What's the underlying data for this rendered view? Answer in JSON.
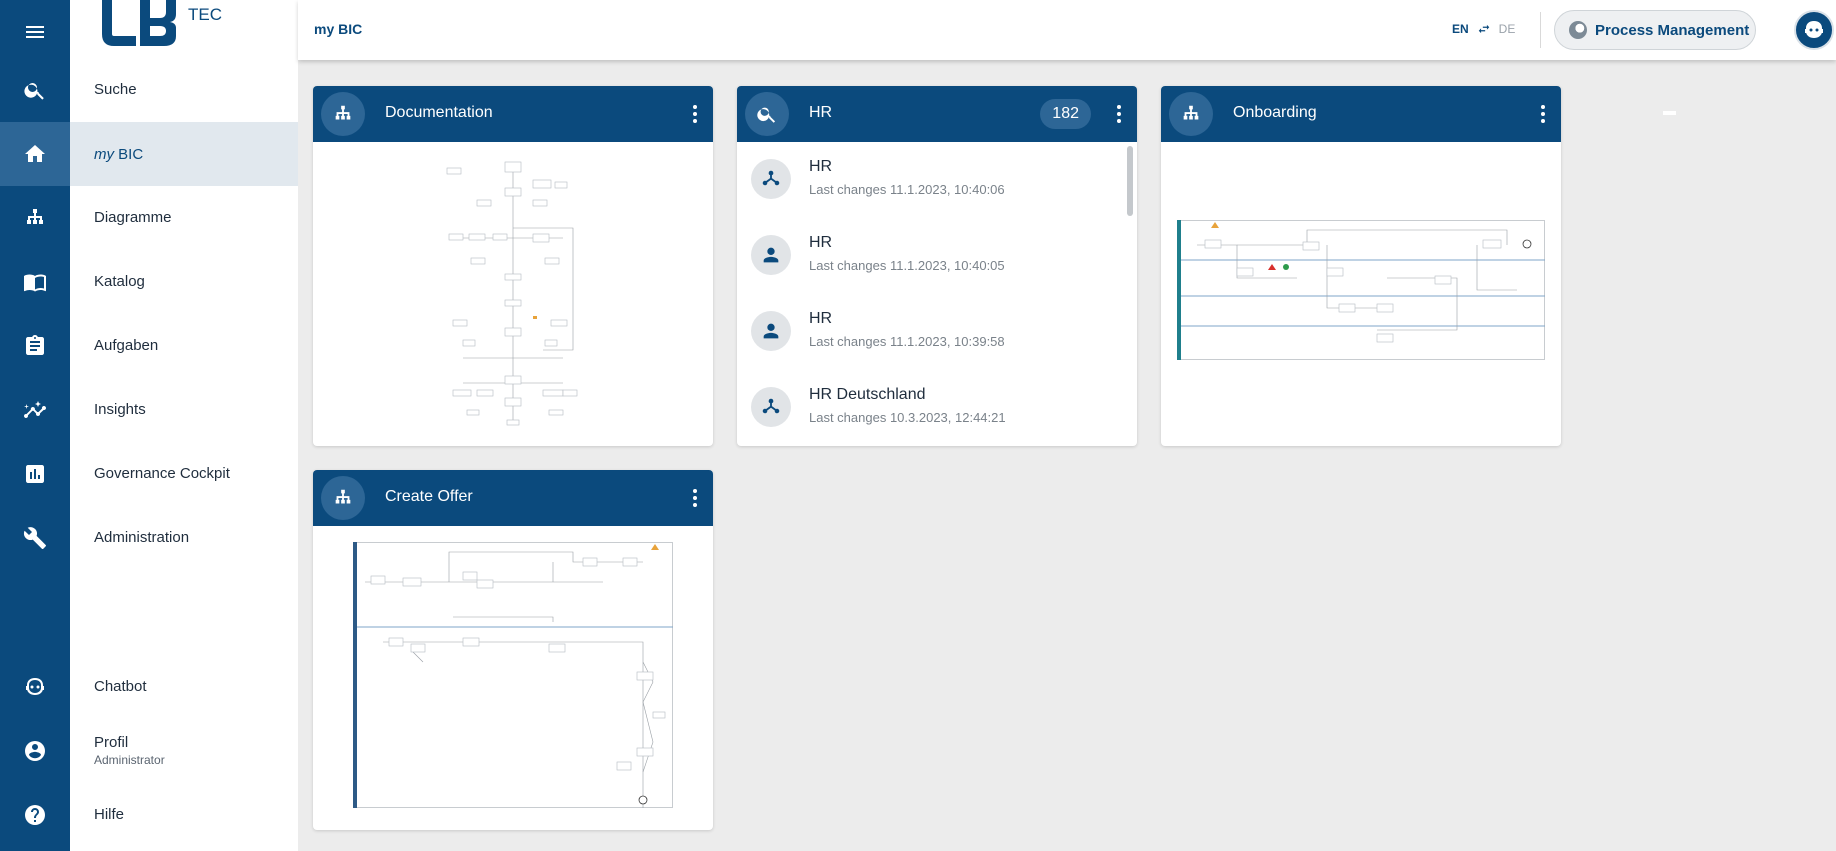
{
  "rail": {
    "items": [
      {
        "name": "menu-icon"
      },
      {
        "name": "search-icon"
      },
      {
        "name": "home-icon"
      },
      {
        "name": "diagram-icon"
      },
      {
        "name": "catalog-icon"
      },
      {
        "name": "tasks-icon"
      },
      {
        "name": "insights-icon"
      },
      {
        "name": "governance-icon"
      },
      {
        "name": "wrench-icon"
      },
      {
        "name": "chatbot-icon"
      },
      {
        "name": "profile-icon"
      },
      {
        "name": "help-icon"
      }
    ]
  },
  "logo": {
    "text": "TEC"
  },
  "nav": {
    "items": [
      {
        "label": "Suche"
      },
      {
        "prefix": "my",
        "label": "BIC"
      },
      {
        "label": "Diagramme"
      },
      {
        "label": "Katalog"
      },
      {
        "label": "Aufgaben"
      },
      {
        "label": "Insights"
      },
      {
        "label": "Governance Cockpit"
      },
      {
        "label": "Administration"
      },
      {
        "label": "Chatbot"
      },
      {
        "label": "Profil",
        "sub": "Administrator"
      },
      {
        "label": "Hilfe"
      }
    ]
  },
  "header": {
    "breadcrumb": "my BIC",
    "lang_en": "EN",
    "lang_de": "DE",
    "stage_button": "Process Management"
  },
  "widgets": {
    "documentation": {
      "title": "Documentation"
    },
    "hr": {
      "title": "HR",
      "count": "182",
      "items": [
        {
          "title": "HR",
          "subtitle": "Last changes 11.1.2023, 10:40:06",
          "icon": "org-unit-icon"
        },
        {
          "title": "HR",
          "subtitle": "Last changes 11.1.2023, 10:40:05",
          "icon": "person-icon"
        },
        {
          "title": "HR",
          "subtitle": "Last changes 11.1.2023, 10:39:58",
          "icon": "person-icon"
        },
        {
          "title": "HR Deutschland",
          "subtitle": "Last changes 10.3.2023, 12:44:21",
          "icon": "org-unit-icon"
        }
      ]
    },
    "onboarding": {
      "title": "Onboarding"
    },
    "create_offer": {
      "title": "Create Offer"
    }
  },
  "colors": {
    "brand": "#0b4a7d",
    "brand_light": "#2d6696",
    "active_nav": "#e1e8ee",
    "background": "#ececec"
  }
}
